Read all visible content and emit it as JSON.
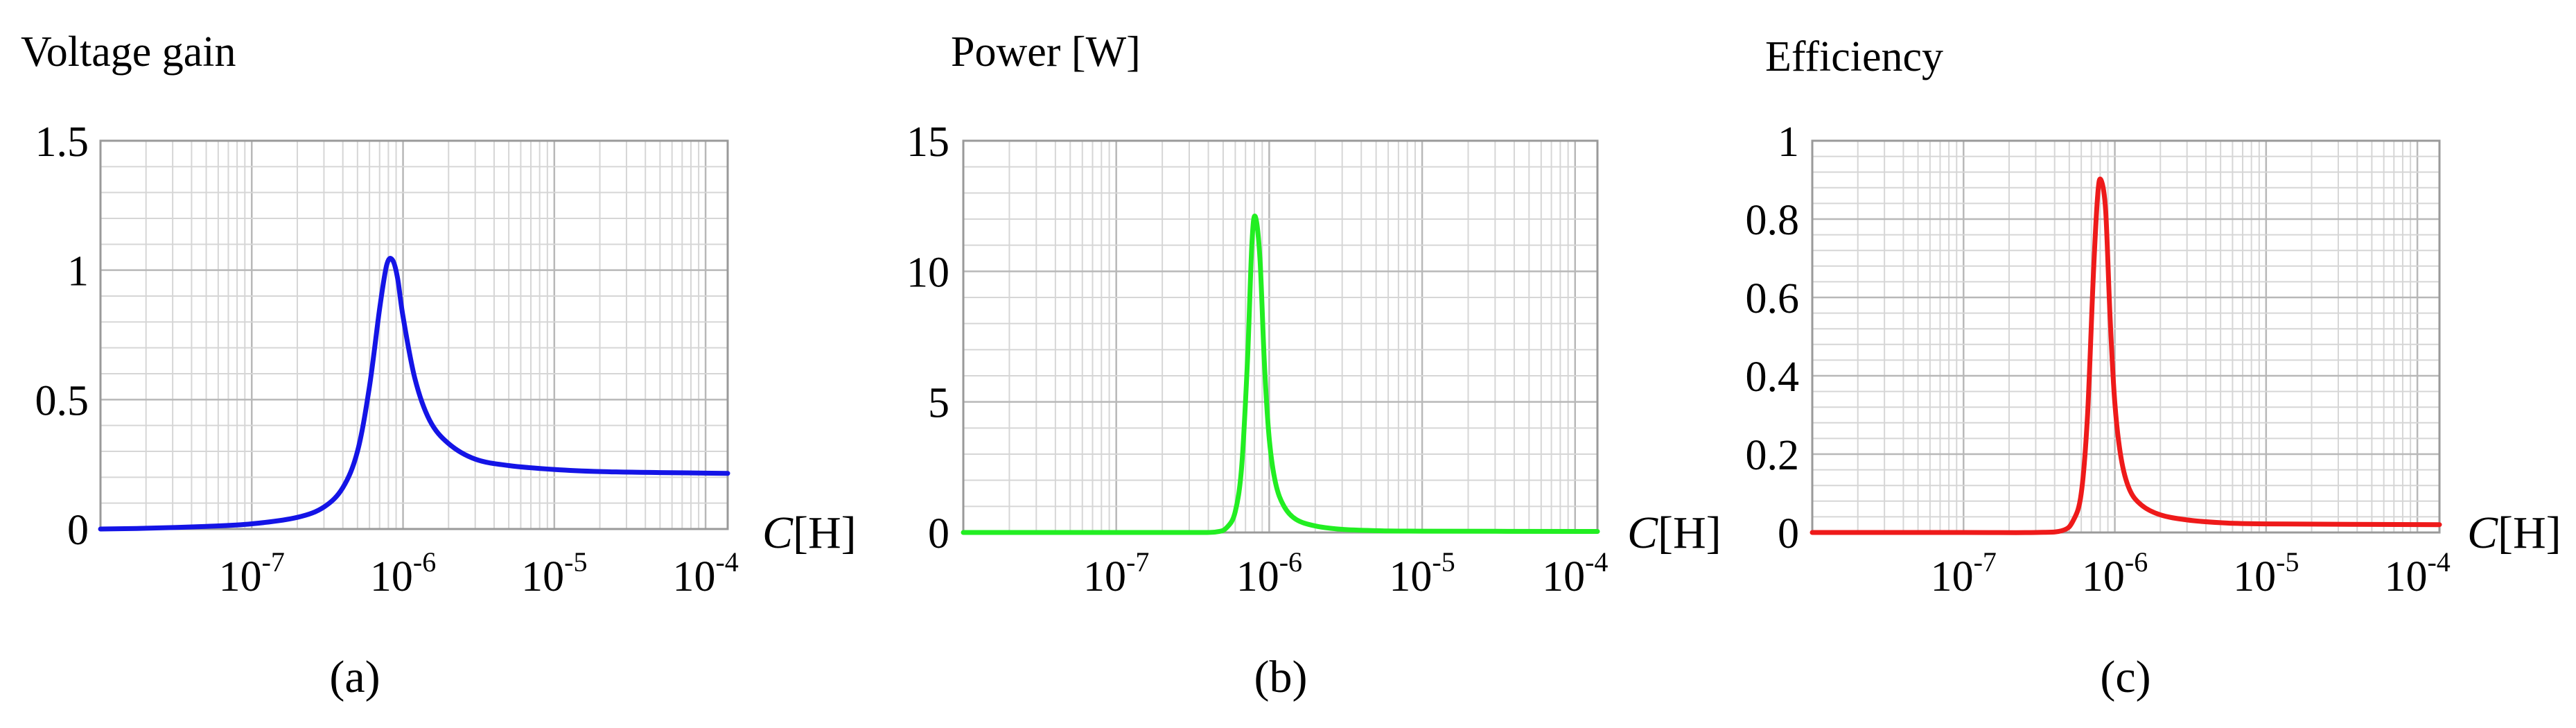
{
  "chart_data": [
    {
      "type": "line",
      "ylabel": "Voltage gain",
      "xlabel_var": "C",
      "xlabel_unit": "[H]",
      "caption": "(a)",
      "x_scale": "log",
      "xlim": [
        1e-08,
        0.00014
      ],
      "ylim": [
        0,
        1.5
      ],
      "yticks": [
        "0",
        "0.5",
        "1",
        "1.5"
      ],
      "ytick_values": [
        0,
        0.5,
        1,
        1.5
      ],
      "xticks": [
        {
          "value": 1e-07,
          "base": "10",
          "exp": "-7"
        },
        {
          "value": 1e-06,
          "base": "10",
          "exp": "-6"
        },
        {
          "value": 1e-05,
          "base": "10",
          "exp": "-5"
        },
        {
          "value": 0.0001,
          "base": "10",
          "exp": "-4"
        }
      ],
      "grid": true,
      "color": "#1414e6",
      "series": [
        {
          "x": [
            1e-08,
            2e-08,
            5e-08,
            1e-07,
            2e-07,
            3e-07,
            4e-07,
            5e-07,
            6e-07,
            7e-07,
            7.8e-07,
            8.5e-07,
            9.2e-07,
            1e-06,
            1.2e-06,
            1.5e-06,
            2e-06,
            3e-06,
            5e-06,
            1e-05,
            2e-05,
            5e-05,
            0.00014
          ],
          "y": [
            0.0,
            0.003,
            0.01,
            0.02,
            0.045,
            0.085,
            0.16,
            0.3,
            0.55,
            0.85,
            1.02,
            1.04,
            0.97,
            0.82,
            0.58,
            0.42,
            0.33,
            0.27,
            0.245,
            0.23,
            0.222,
            0.218,
            0.215
          ]
        }
      ]
    },
    {
      "type": "line",
      "ylabel": "Power [W]",
      "xlabel_var": "C",
      "xlabel_unit": "[H]",
      "caption": "(b)",
      "x_scale": "log",
      "xlim": [
        1e-08,
        0.00014
      ],
      "ylim": [
        0,
        15
      ],
      "yticks": [
        "0",
        "5",
        "10",
        "15"
      ],
      "ytick_values": [
        0,
        5,
        10,
        15
      ],
      "xticks": [
        {
          "value": 1e-07,
          "base": "10",
          "exp": "-7"
        },
        {
          "value": 1e-06,
          "base": "10",
          "exp": "-6"
        },
        {
          "value": 1e-05,
          "base": "10",
          "exp": "-5"
        },
        {
          "value": 0.0001,
          "base": "10",
          "exp": "-4"
        }
      ],
      "grid": true,
      "color": "#22ee22",
      "series": [
        {
          "x": [
            1e-08,
            1e-07,
            3e-07,
            4.5e-07,
            5.3e-07,
            6e-07,
            6.6e-07,
            7.2e-07,
            7.7e-07,
            8.1e-07,
            8.7e-07,
            9.3e-07,
            1e-06,
            1.1e-06,
            1.25e-06,
            1.5e-06,
            2e-06,
            3e-06,
            5e-06,
            1e-05,
            0.00014
          ],
          "y": [
            0,
            0,
            0,
            0.02,
            0.2,
            0.8,
            2.5,
            6.5,
            11.0,
            12.1,
            10.5,
            6.5,
            3.6,
            1.9,
            1.0,
            0.5,
            0.25,
            0.12,
            0.07,
            0.05,
            0.04
          ]
        }
      ]
    },
    {
      "type": "line",
      "ylabel": "Efficiency",
      "xlabel_var": "C",
      "xlabel_unit": "[H]",
      "caption": "(c)",
      "x_scale": "log",
      "xlim": [
        1e-08,
        0.00014
      ],
      "ylim": [
        0,
        1
      ],
      "yticks": [
        "0",
        "0.2",
        "0.4",
        "0.6",
        "0.8",
        "1"
      ],
      "ytick_values": [
        0,
        0.2,
        0.4,
        0.6,
        0.8,
        1
      ],
      "xticks": [
        {
          "value": 1e-07,
          "base": "10",
          "exp": "-7"
        },
        {
          "value": 1e-06,
          "base": "10",
          "exp": "-6"
        },
        {
          "value": 1e-05,
          "base": "10",
          "exp": "-5"
        },
        {
          "value": 0.0001,
          "base": "10",
          "exp": "-4"
        }
      ],
      "grid": true,
      "color": "#ee1a1a",
      "series": [
        {
          "x": [
            1e-08,
            1e-07,
            3e-07,
            4.5e-07,
            5.3e-07,
            6e-07,
            6.6e-07,
            7.2e-07,
            7.7e-07,
            8.1e-07,
            8.7e-07,
            9.3e-07,
            1e-06,
            1.1e-06,
            1.25e-06,
            1.5e-06,
            2e-06,
            3e-06,
            5e-06,
            1e-05,
            0.00014
          ],
          "y": [
            0,
            0,
            0,
            0.005,
            0.03,
            0.1,
            0.3,
            0.65,
            0.86,
            0.9,
            0.82,
            0.55,
            0.33,
            0.19,
            0.11,
            0.07,
            0.045,
            0.032,
            0.025,
            0.022,
            0.02
          ]
        }
      ]
    }
  ]
}
